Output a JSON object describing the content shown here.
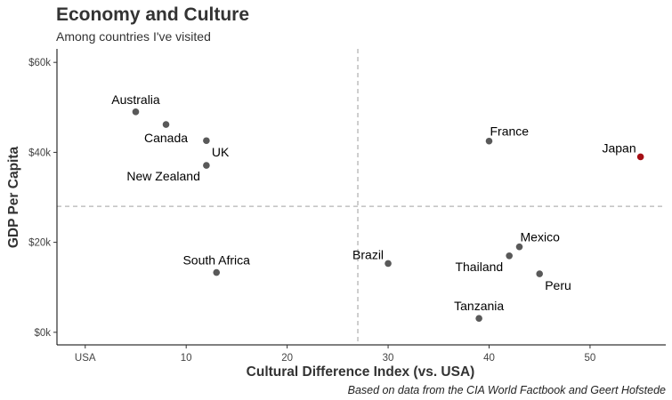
{
  "chart_data": {
    "type": "scatter",
    "title": "Economy and Culture",
    "subtitle": "Among countries I've visited",
    "caption": "Based on data from the CIA World Factbook and Geert Hofstede",
    "xlabel": "Cultural Difference Index (vs. USA)",
    "ylabel": "GDP Per Capita",
    "xlim": [
      -2.8,
      57.5
    ],
    "ylim": [
      -2800,
      63000
    ],
    "x_ticks": [
      {
        "value": 0,
        "label": "USA"
      },
      {
        "value": 10,
        "label": "10"
      },
      {
        "value": 20,
        "label": "20"
      },
      {
        "value": 30,
        "label": "30"
      },
      {
        "value": 40,
        "label": "40"
      },
      {
        "value": 50,
        "label": "50"
      }
    ],
    "y_ticks": [
      {
        "value": 0,
        "label": "$0k"
      },
      {
        "value": 20000,
        "label": "$20k"
      },
      {
        "value": 40000,
        "label": "$40k"
      },
      {
        "value": 60000,
        "label": "$60k"
      }
    ],
    "reference_lines": {
      "x": 27,
      "y": 28000
    },
    "grid": false,
    "colors": {
      "default": "#595959",
      "highlight": "#a50f15"
    },
    "points": [
      {
        "label": "Australia",
        "x": 5,
        "y": 49000,
        "label_pos": "above"
      },
      {
        "label": "Canada",
        "x": 8,
        "y": 46200,
        "label_pos": "below"
      },
      {
        "label": "UK",
        "x": 12,
        "y": 42600,
        "label_pos": "below-right"
      },
      {
        "label": "New Zealand",
        "x": 12,
        "y": 37100,
        "label_pos": "below-left"
      },
      {
        "label": "South Africa",
        "x": 13,
        "y": 13300,
        "label_pos": "above"
      },
      {
        "label": "Brazil",
        "x": 30,
        "y": 15300,
        "label_pos": "above-left"
      },
      {
        "label": "France",
        "x": 40,
        "y": 42500,
        "label_pos": "above-right"
      },
      {
        "label": "Mexico",
        "x": 43,
        "y": 19000,
        "label_pos": "above-right"
      },
      {
        "label": "Thailand",
        "x": 42,
        "y": 17000,
        "label_pos": "below-left"
      },
      {
        "label": "Peru",
        "x": 45,
        "y": 13000,
        "label_pos": "below-right"
      },
      {
        "label": "Tanzania",
        "x": 39,
        "y": 3100,
        "label_pos": "above"
      },
      {
        "label": "Japan",
        "x": 55,
        "y": 39000,
        "label_pos": "above-left",
        "highlight": true
      }
    ]
  }
}
